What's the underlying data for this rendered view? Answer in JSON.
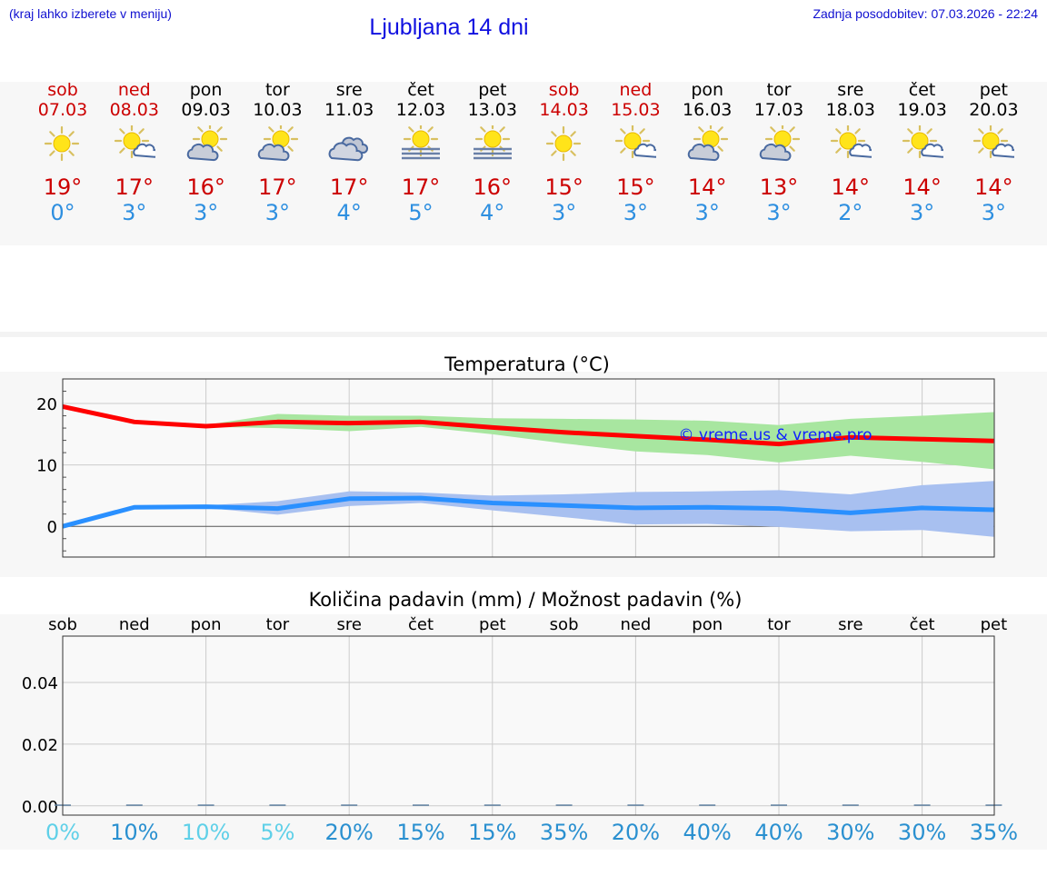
{
  "header": {
    "note": "(kraj lahko izberete v meniju)",
    "title": "Ljubljana 14 dni",
    "updated": "Zadnja posodobitev: 07.03.2026 - 22:24"
  },
  "days": [
    {
      "name": "sob",
      "date": "07.03",
      "weekend": true,
      "icon": "sun-icon",
      "max": "19°",
      "min": "0°"
    },
    {
      "name": "ned",
      "date": "08.03",
      "weekend": true,
      "icon": "sun-cloud-icon",
      "max": "17°",
      "min": "3°"
    },
    {
      "name": "pon",
      "date": "09.03",
      "weekend": false,
      "icon": "sun-dark-cloud-icon",
      "max": "16°",
      "min": "3°"
    },
    {
      "name": "tor",
      "date": "10.03",
      "weekend": false,
      "icon": "sun-dark-cloud-icon",
      "max": "17°",
      "min": "3°"
    },
    {
      "name": "sre",
      "date": "11.03",
      "weekend": false,
      "icon": "cloudy-icon",
      "max": "17°",
      "min": "4°"
    },
    {
      "name": "čet",
      "date": "12.03",
      "weekend": false,
      "icon": "sun-fog-icon",
      "max": "17°",
      "min": "5°"
    },
    {
      "name": "pet",
      "date": "13.03",
      "weekend": false,
      "icon": "sun-fog-icon",
      "max": "16°",
      "min": "4°"
    },
    {
      "name": "sob",
      "date": "14.03",
      "weekend": true,
      "icon": "sun-icon",
      "max": "15°",
      "min": "3°"
    },
    {
      "name": "ned",
      "date": "15.03",
      "weekend": true,
      "icon": "sun-cloud-icon",
      "max": "15°",
      "min": "3°"
    },
    {
      "name": "pon",
      "date": "16.03",
      "weekend": false,
      "icon": "sun-dark-cloud-icon",
      "max": "14°",
      "min": "3°"
    },
    {
      "name": "tor",
      "date": "17.03",
      "weekend": false,
      "icon": "sun-dark-cloud-icon",
      "max": "13°",
      "min": "3°"
    },
    {
      "name": "sre",
      "date": "18.03",
      "weekend": false,
      "icon": "sun-cloud-icon",
      "max": "14°",
      "min": "2°"
    },
    {
      "name": "čet",
      "date": "19.03",
      "weekend": false,
      "icon": "sun-cloud-icon",
      "max": "14°",
      "min": "3°"
    },
    {
      "name": "pet",
      "date": "20.03",
      "weekend": false,
      "icon": "sun-cloud-icon",
      "max": "14°",
      "min": "3°"
    }
  ],
  "colors": {
    "weekend": "#cc0000",
    "max_line": "#ff0000",
    "min_line": "#2a90ff",
    "max_band": "#a8e6a0",
    "min_band": "#a8c0f0",
    "watermark": "#1020ff",
    "precip_low": "#5fd0e8",
    "precip_high": "#2a90d0"
  },
  "chart_data": [
    {
      "type": "line",
      "title": "Temperatura (°C)",
      "watermark": "© vreme.us & vreme.pro",
      "categories": [
        "07.03",
        "08.03",
        "09.03",
        "10.03",
        "11.03",
        "12.03",
        "13.03",
        "14.03",
        "15.03",
        "16.03",
        "17.03",
        "18.03",
        "19.03",
        "20.03"
      ],
      "ylim": [
        -5,
        24
      ],
      "yticks": [
        0,
        10,
        20
      ],
      "grid": true,
      "series": [
        {
          "values": [
            19.5,
            17,
            16.3,
            17,
            16.8,
            17,
            16.1,
            15.3,
            14.7,
            14.1,
            13.4,
            14.5,
            14.2,
            13.9
          ],
          "band_low": [
            19.5,
            17,
            16.2,
            16,
            15.5,
            16.2,
            15,
            13.5,
            12.2,
            11.6,
            10.4,
            11.5,
            10.5,
            9.3
          ],
          "band_high": [
            19.5,
            17,
            16.5,
            18.3,
            18,
            18,
            17.6,
            17.5,
            17.4,
            17.2,
            16.5,
            17.5,
            18,
            18.6
          ]
        },
        {
          "values": [
            0,
            3.1,
            3.2,
            2.9,
            4.5,
            4.6,
            3.8,
            3.4,
            3,
            3.1,
            2.9,
            2.2,
            3,
            2.7
          ],
          "band_low": [
            0,
            3,
            3,
            1.9,
            3.3,
            3.8,
            2.6,
            1.5,
            0.3,
            0.4,
            -0.1,
            -0.8,
            -0.6,
            -1.7
          ],
          "band_high": [
            0,
            3.2,
            3.4,
            4.1,
            5.7,
            5.5,
            5,
            5.2,
            5.6,
            5.7,
            5.9,
            5.2,
            6.7,
            7.4
          ]
        }
      ]
    },
    {
      "type": "bar",
      "title": "Količina padavin (mm) / Možnost padavin (%)",
      "categories": [
        "sob",
        "ned",
        "pon",
        "tor",
        "sre",
        "čet",
        "pet",
        "sob",
        "ned",
        "pon",
        "tor",
        "sre",
        "čet",
        "pet"
      ],
      "values": [
        0,
        0,
        0,
        0,
        0,
        0,
        0,
        0,
        0,
        0,
        0,
        0,
        0,
        0
      ],
      "ylim": [
        -0.003,
        0.055
      ],
      "yticks": [
        "0.00",
        "0.02",
        "0.04"
      ],
      "probability": [
        "0%",
        "10%",
        "10%",
        "5%",
        "20%",
        "15%",
        "15%",
        "35%",
        "20%",
        "40%",
        "40%",
        "30%",
        "30%",
        "35%"
      ],
      "grid": true
    }
  ]
}
